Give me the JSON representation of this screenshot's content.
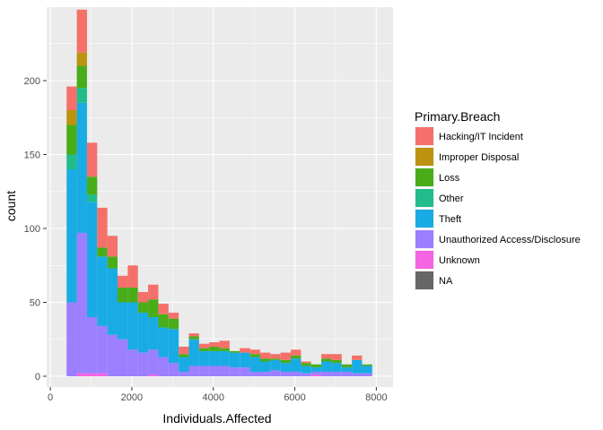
{
  "chart_data": {
    "type": "bar",
    "stacked": true,
    "xlabel": "Individuals.Affected",
    "ylabel": "count",
    "xlim": [
      0,
      8000
    ],
    "ylim": [
      0,
      240
    ],
    "x_ticks": [
      0,
      2000,
      4000,
      6000,
      8000
    ],
    "y_ticks": [
      0,
      50,
      100,
      150,
      200
    ],
    "grid": true,
    "legend_title": "Primary.Breach",
    "legend_position": "right",
    "bin_starts": [
      400,
      650,
      900,
      1150,
      1400,
      1650,
      1900,
      2150,
      2400,
      2650,
      2900,
      3150,
      3400,
      3650,
      3900,
      4150,
      4400,
      4650,
      4900,
      5150,
      5400,
      5650,
      5900,
      6150,
      6400,
      6650,
      6900,
      7150,
      7400,
      7650
    ],
    "bin_width": 250,
    "series": [
      {
        "name": "Unknown",
        "color": "#F564E3",
        "values": [
          0,
          2,
          2,
          2,
          0,
          0,
          0,
          0,
          1,
          0,
          0,
          0,
          0,
          0,
          0,
          0,
          0,
          0,
          0,
          0,
          0,
          0,
          0,
          0,
          1,
          0,
          0,
          0,
          0,
          0
        ]
      },
      {
        "name": "Unauthorized Access/Disclosure",
        "color": "#9B7FFF",
        "values": [
          50,
          95,
          38,
          32,
          28,
          25,
          18,
          16,
          17,
          13,
          9,
          3,
          7,
          7,
          7,
          7,
          6,
          6,
          3,
          3,
          4,
          3,
          3,
          2,
          2,
          3,
          3,
          3,
          2,
          2
        ]
      },
      {
        "name": "Theft",
        "color": "#19ABE3",
        "values": [
          90,
          88,
          78,
          47,
          45,
          25,
          32,
          27,
          22,
          20,
          23,
          10,
          18,
          10,
          10,
          10,
          10,
          10,
          10,
          7,
          7,
          6,
          9,
          5,
          3,
          7,
          6,
          3,
          9,
          5
        ]
      },
      {
        "name": "Other",
        "color": "#22BC8C",
        "values": [
          10,
          10,
          5,
          0,
          0,
          0,
          0,
          0,
          0,
          0,
          0,
          0,
          0,
          0,
          0,
          0,
          0,
          0,
          0,
          0,
          0,
          0,
          0,
          0,
          0,
          0,
          0,
          0,
          0,
          0
        ]
      },
      {
        "name": "Loss",
        "color": "#49AD19",
        "values": [
          20,
          15,
          12,
          6,
          8,
          10,
          10,
          7,
          12,
          9,
          7,
          2,
          2,
          2,
          3,
          2,
          1,
          0,
          2,
          2,
          1,
          2,
          2,
          2,
          2,
          2,
          2,
          2,
          0,
          1
        ]
      },
      {
        "name": "Improper Disposal",
        "color": "#BC930E",
        "values": [
          10,
          9,
          0,
          0,
          0,
          0,
          0,
          0,
          0,
          0,
          0,
          0,
          0,
          0,
          0,
          0,
          0,
          0,
          0,
          0,
          0,
          0,
          0,
          0,
          0,
          0,
          0,
          0,
          0,
          0
        ]
      },
      {
        "name": "Hacking/IT Incident",
        "color": "#F5706A",
        "values": [
          16,
          29,
          23,
          27,
          14,
          8,
          15,
          7,
          10,
          7,
          4,
          5,
          2,
          3,
          3,
          5,
          0,
          3,
          3,
          4,
          3,
          5,
          4,
          1,
          0,
          3,
          4,
          0,
          3,
          0
        ]
      }
    ],
    "legend": [
      {
        "name": "Hacking/IT Incident",
        "color": "#F5706A"
      },
      {
        "name": "Improper Disposal",
        "color": "#BC930E"
      },
      {
        "name": "Loss",
        "color": "#49AD19"
      },
      {
        "name": "Other",
        "color": "#22BC8C"
      },
      {
        "name": "Theft",
        "color": "#19ABE3"
      },
      {
        "name": "Unauthorized Access/Disclosure",
        "color": "#9B7FFF"
      },
      {
        "name": "Unknown",
        "color": "#F564E3"
      },
      {
        "name": "NA",
        "color": "#666666"
      }
    ],
    "panel_background": "#EBEBEB",
    "gridline_color": "#FFFFFF"
  }
}
